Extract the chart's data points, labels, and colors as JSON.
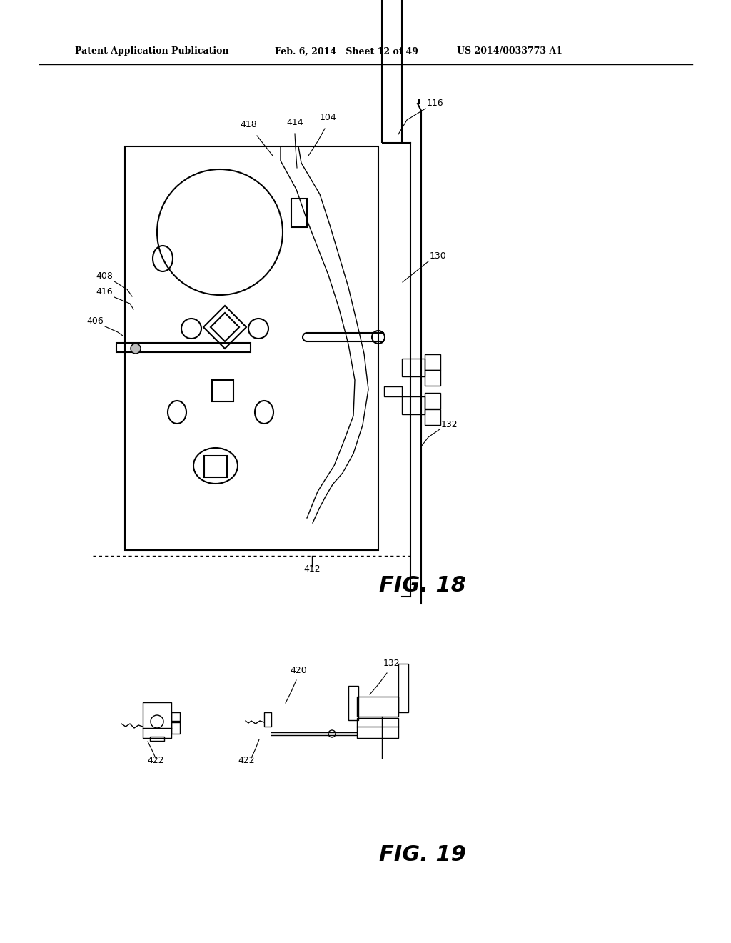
{
  "bg_color": "#ffffff",
  "header_left": "Patent Application Publication",
  "header_mid": "Feb. 6, 2014   Sheet 12 of 49",
  "header_right": "US 2014/0033773 A1",
  "fig18_label": "FIG. 18",
  "fig19_label": "FIG. 19"
}
